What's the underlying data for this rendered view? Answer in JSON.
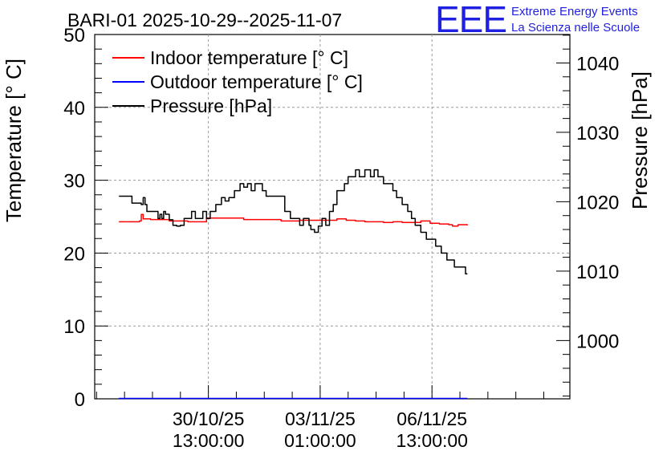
{
  "header": {
    "title": "BARI-01 2025-10-29--2025-11-07",
    "logo_letters": "EEE",
    "logo_line1": "Extreme Energy Events",
    "logo_line2": "La Scienza nelle Scuole"
  },
  "chart_data": {
    "type": "line",
    "title": "BARI-01 2025-10-29--2025-11-07",
    "ylabel": "Temperature [° C]",
    "y2label": "Pressure [hPa]",
    "ylim": [
      0,
      50
    ],
    "y2lim": [
      991.6,
      1044.1
    ],
    "xlim_hours": [
      0,
      255
    ],
    "y_ticks": [
      0,
      10,
      20,
      30,
      40,
      50
    ],
    "y2_ticks": [
      1000,
      1010,
      1020,
      1030,
      1040
    ],
    "x_ticks": [
      {
        "hours": 61,
        "line1": "30/10/25",
        "line2": "13:00:00"
      },
      {
        "hours": 121,
        "line1": "03/11/25",
        "line2": "01:00:00"
      },
      {
        "hours": 181,
        "line1": "06/11/25",
        "line2": "13:00:00"
      }
    ],
    "grid": true,
    "legend_position": "top-left",
    "series": [
      {
        "name": "Indoor temperature [° C]",
        "color": "#ff0000",
        "axis": "left",
        "x": [
          13,
          20,
          24,
          25,
          26,
          30,
          40,
          50,
          60,
          70,
          80,
          90,
          100,
          110,
          115,
          120,
          125,
          130,
          135,
          140,
          145,
          150,
          155,
          160,
          165,
          170,
          175,
          180,
          185,
          190,
          192,
          195,
          200
        ],
        "values": [
          24.3,
          24.3,
          24.4,
          25.3,
          24.7,
          24.6,
          24.4,
          24.3,
          24.8,
          24.8,
          24.6,
          24.6,
          24.4,
          24.5,
          24.5,
          24.5,
          24.5,
          24.7,
          24.5,
          24.4,
          24.3,
          24.3,
          24.2,
          24.3,
          24.2,
          24.2,
          24.4,
          24.1,
          24.0,
          23.9,
          23.7,
          23.9,
          23.8
        ]
      },
      {
        "name": "Outdoor temperature [° C]",
        "color": "#0000ff",
        "axis": "left",
        "x": [
          13,
          200
        ],
        "values": [
          0.05,
          0.05
        ]
      },
      {
        "name": "Pressure [hPa]",
        "color": "#000000",
        "axis": "right",
        "x": [
          13,
          20,
          25,
          26,
          27,
          28,
          30,
          32,
          34,
          35,
          36,
          37,
          38,
          40,
          42,
          44,
          46,
          48,
          50,
          52,
          54,
          56,
          58,
          60,
          62,
          65,
          68,
          70,
          72,
          75,
          78,
          80,
          82,
          84,
          86,
          88,
          90,
          92,
          95,
          97,
          100,
          102,
          105,
          108,
          110,
          112,
          115,
          116,
          118,
          119,
          120,
          122,
          124,
          126,
          128,
          130,
          132,
          134,
          136,
          138,
          140,
          142,
          145,
          148,
          150,
          152,
          155,
          158,
          160,
          162,
          165,
          168,
          170,
          172,
          175,
          177,
          178,
          180,
          183,
          186,
          189,
          192,
          193,
          195,
          197,
          199,
          200
        ],
        "values": [
          1020.8,
          1019.8,
          1019.6,
          1020.6,
          1019.6,
          1018.6,
          1018.6,
          1018.6,
          1017.6,
          1018.2,
          1017.6,
          1018.6,
          1018.2,
          1017.4,
          1016.6,
          1016.5,
          1016.6,
          1017.6,
          1017.6,
          1018.6,
          1017.6,
          1017.6,
          1018.6,
          1017.6,
          1018.6,
          1019.6,
          1020.6,
          1020.1,
          1020.6,
          1021.6,
          1022.6,
          1022.1,
          1022.6,
          1021.6,
          1022.6,
          1022.6,
          1021.6,
          1020.8,
          1020.8,
          1020.8,
          1020.8,
          1018.6,
          1017.6,
          1017.6,
          1016.6,
          1017.6,
          1016.6,
          1016.0,
          1015.6,
          1015.6,
          1016.5,
          1017.6,
          1016.6,
          1018.6,
          1019.6,
          1021.6,
          1021.6,
          1022.6,
          1023.6,
          1023.6,
          1024.6,
          1023.6,
          1024.6,
          1023.6,
          1024.6,
          1023.6,
          1022.6,
          1022.6,
          1021.6,
          1020.6,
          1019.6,
          1018.6,
          1017.6,
          1016.6,
          1015.6,
          1015.6,
          1014.6,
          1014.6,
          1013.6,
          1012.6,
          1011.6,
          1011.6,
          1010.6,
          1010.6,
          1010.6,
          1009.6,
          1009.6
        ]
      }
    ]
  }
}
